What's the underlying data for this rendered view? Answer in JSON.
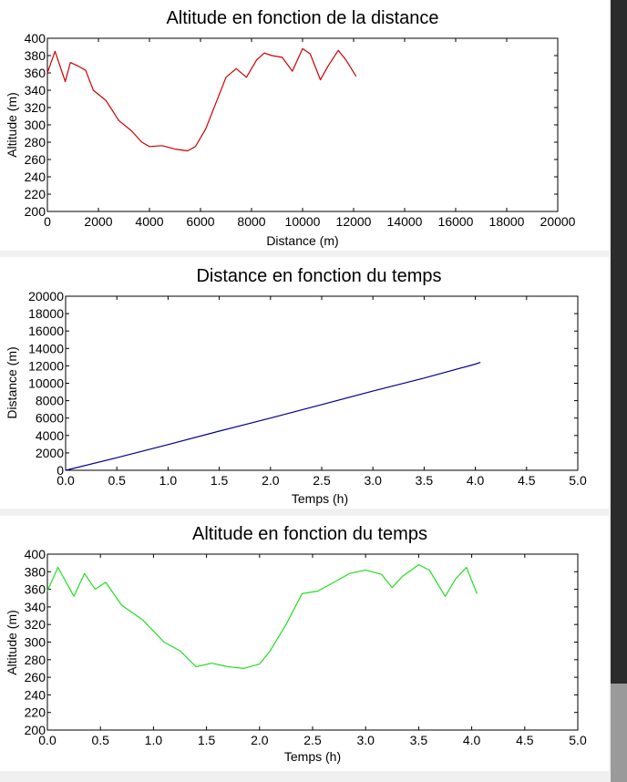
{
  "status_text": "",
  "chart_data": [
    {
      "type": "line",
      "title": "Altitude en fonction de la distance",
      "xlabel": "Distance (m)",
      "ylabel": "Altitude (m)",
      "xlim": [
        0,
        20000
      ],
      "ylim": [
        200,
        400
      ],
      "xticks": [
        0,
        2000,
        4000,
        6000,
        8000,
        10000,
        12000,
        14000,
        16000,
        18000,
        20000
      ],
      "yticks": [
        200,
        220,
        240,
        260,
        280,
        300,
        320,
        340,
        360,
        380,
        400
      ],
      "x_tick_decimals": 0,
      "grid": false,
      "color": "#cc0000",
      "series": [
        {
          "x": [
            0,
            300,
            700,
            900,
            1200,
            1500,
            1800,
            2300,
            2800,
            3300,
            3700,
            4000,
            4500,
            5000,
            5500,
            5800,
            6200,
            6600,
            7000,
            7400,
            7800,
            8200,
            8500,
            8800,
            9200,
            9600,
            10000,
            10300,
            10700,
            11000,
            11400,
            11700,
            12100
          ],
          "y": [
            360,
            385,
            350,
            372,
            368,
            363,
            340,
            328,
            305,
            293,
            280,
            275,
            276,
            272,
            270,
            275,
            295,
            325,
            355,
            365,
            355,
            375,
            383,
            380,
            378,
            362,
            388,
            382,
            352,
            368,
            386,
            375,
            356
          ]
        }
      ]
    },
    {
      "type": "line",
      "title": "Distance en fonction du temps",
      "xlabel": "Temps (h)",
      "ylabel": "Distance (m)",
      "xlim": [
        0,
        5
      ],
      "ylim": [
        0,
        20000
      ],
      "xticks": [
        0,
        0.5,
        1,
        1.5,
        2,
        2.5,
        3,
        3.5,
        4,
        4.5,
        5
      ],
      "yticks": [
        0,
        2000,
        4000,
        6000,
        8000,
        10000,
        12000,
        14000,
        16000,
        18000,
        20000
      ],
      "x_tick_decimals": 1,
      "grid": false,
      "color": "#00008b",
      "series": [
        {
          "x": [
            0,
            0.5,
            1,
            1.5,
            2,
            2.5,
            3,
            3.5,
            4,
            4.05
          ],
          "y": [
            0,
            1450,
            2950,
            4500,
            6000,
            7550,
            9100,
            10600,
            12200,
            12400
          ]
        }
      ]
    },
    {
      "type": "line",
      "title": "Altitude en fonction du temps",
      "xlabel": "Temps (h)",
      "ylabel": "Altitude (m)",
      "xlim": [
        0,
        5
      ],
      "ylim": [
        200,
        400
      ],
      "xticks": [
        0,
        0.5,
        1,
        1.5,
        2,
        2.5,
        3,
        3.5,
        4,
        4.5,
        5
      ],
      "yticks": [
        200,
        220,
        240,
        260,
        280,
        300,
        320,
        340,
        360,
        380,
        400
      ],
      "x_tick_decimals": 1,
      "grid": false,
      "color": "#22dd22",
      "series": [
        {
          "x": [
            0,
            0.1,
            0.25,
            0.35,
            0.45,
            0.55,
            0.7,
            0.9,
            1.1,
            1.25,
            1.4,
            1.55,
            1.7,
            1.85,
            2.0,
            2.1,
            2.25,
            2.4,
            2.55,
            2.7,
            2.85,
            3.0,
            3.15,
            3.25,
            3.35,
            3.5,
            3.6,
            3.75,
            3.85,
            3.95,
            4.05
          ],
          "y": [
            358,
            385,
            352,
            378,
            360,
            368,
            342,
            325,
            300,
            290,
            272,
            276,
            272,
            270,
            275,
            290,
            320,
            355,
            358,
            368,
            378,
            382,
            377,
            362,
            375,
            388,
            382,
            352,
            372,
            385,
            355
          ]
        }
      ]
    }
  ]
}
